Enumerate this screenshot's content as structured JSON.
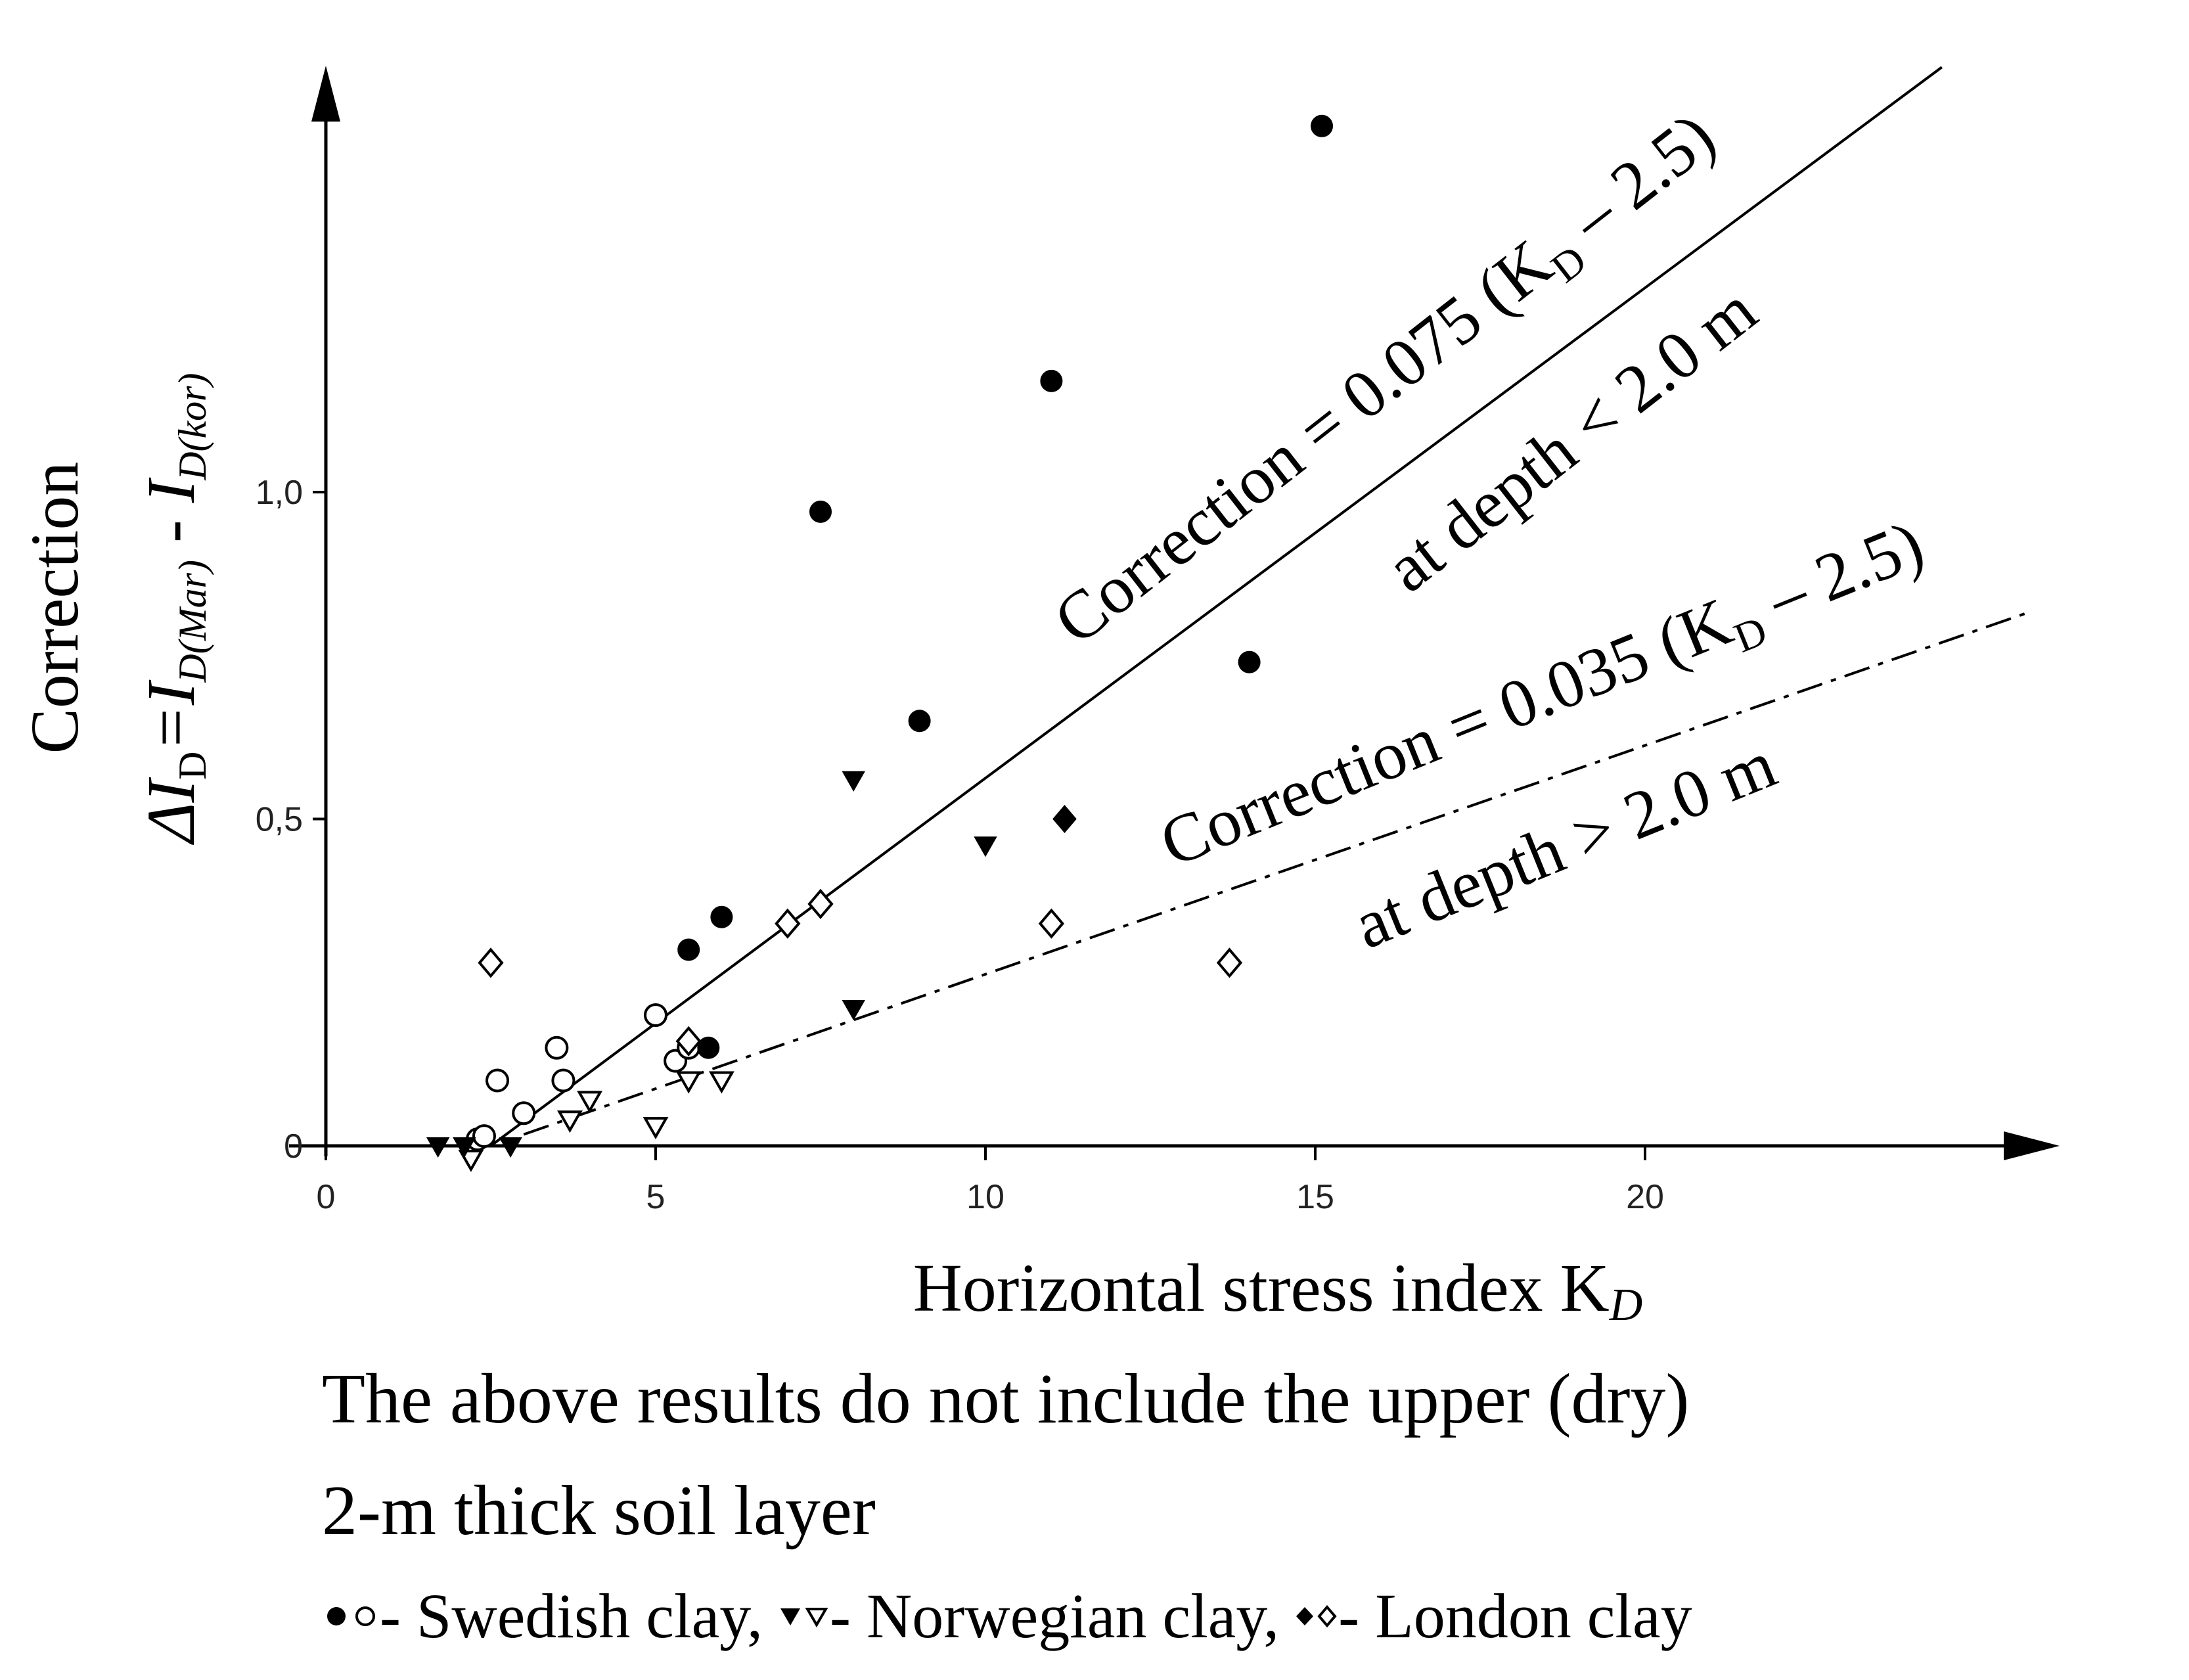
{
  "chart_data": {
    "type": "scatter",
    "xlabel": "Horizontal stress index K",
    "xlabel_sub": "D",
    "ylabel": "Correction",
    "ylabel_formula": {
      "prefix": "ΔI",
      "prefix_sub": "D",
      "eq": "=I",
      "term1_sub": "D(Mar)",
      "minus": " - I",
      "term2_sub": "D(kor)"
    },
    "xlim": [
      0,
      26
    ],
    "ylim": [
      0,
      1.55
    ],
    "x_ticks": [
      0,
      5,
      10,
      15,
      20
    ],
    "x_tick_labels": [
      "0",
      "5",
      "10",
      "15",
      "20"
    ],
    "y_ticks": [
      0,
      0.5,
      1.0
    ],
    "y_tick_labels": [
      "0",
      "0,5",
      "1,0"
    ],
    "series": [
      {
        "name": "Swedish clay",
        "marker_filled": "circle",
        "marker_open": "circle",
        "filled_points": [
          [
            5.5,
            0.3
          ],
          [
            6.0,
            0.35
          ],
          [
            5.8,
            0.15
          ],
          [
            7.5,
            0.97
          ],
          [
            9.0,
            0.65
          ],
          [
            11.0,
            1.17
          ],
          [
            14.0,
            0.74
          ],
          [
            15.1,
            1.56
          ]
        ],
        "open_points": [
          [
            2.3,
            0.01
          ],
          [
            2.4,
            0.015
          ],
          [
            2.6,
            0.1
          ],
          [
            3.0,
            0.05
          ],
          [
            3.5,
            0.15
          ],
          [
            3.6,
            0.1
          ],
          [
            5.0,
            0.2
          ],
          [
            5.3,
            0.13
          ],
          [
            5.5,
            0.15
          ]
        ]
      },
      {
        "name": "Norwegian clay",
        "marker_filled": "triangle-down",
        "marker_open": "triangle-down",
        "filled_points": [
          [
            1.7,
            0.0
          ],
          [
            2.1,
            0.0
          ],
          [
            2.8,
            0.0
          ],
          [
            8.0,
            0.56
          ],
          [
            10.0,
            0.46
          ],
          [
            8.0,
            0.21
          ]
        ],
        "open_points": [
          [
            2.2,
            -0.02
          ],
          [
            3.7,
            0.04
          ],
          [
            4.0,
            0.07
          ],
          [
            5.0,
            0.03
          ],
          [
            5.5,
            0.1
          ],
          [
            6.0,
            0.1
          ]
        ]
      },
      {
        "name": "London clay",
        "marker_filled": "diamond",
        "marker_open": "diamond",
        "filled_points": [
          [
            11.2,
            0.5
          ]
        ],
        "open_points": [
          [
            2.5,
            0.28
          ],
          [
            5.5,
            0.16
          ],
          [
            7.0,
            0.34
          ],
          [
            7.5,
            0.37
          ],
          [
            11.0,
            0.34
          ],
          [
            13.7,
            0.28
          ]
        ]
      }
    ],
    "lines": [
      {
        "slope": 0.075,
        "intercept_kd": 2.5,
        "x_range": [
          2.5,
          24.5
        ],
        "style": "solid",
        "label_main": "Correction = 0.075 (K",
        "label_sub": "D",
        "label_end": " – 2.5)",
        "label_depth": "at depth < 2.0 m"
      },
      {
        "slope": 0.035,
        "intercept_kd": 2.5,
        "x_range": [
          3.0,
          25.8
        ],
        "style": "dash-dot",
        "label_main": "Correction = 0.035 (K",
        "label_sub": "D",
        "label_end": " – 2.5)",
        "label_depth": "at depth > 2.0 m"
      }
    ],
    "grid": false,
    "legend": "bottom"
  },
  "notes": {
    "line1": "The above results do not include the upper (dry)",
    "line2": "2-m thick soil layer"
  },
  "legend": {
    "swedish_text": " - Swedish clay,",
    "norwegian_text": " - Norwegian clay,",
    "london_text": " - London clay"
  }
}
